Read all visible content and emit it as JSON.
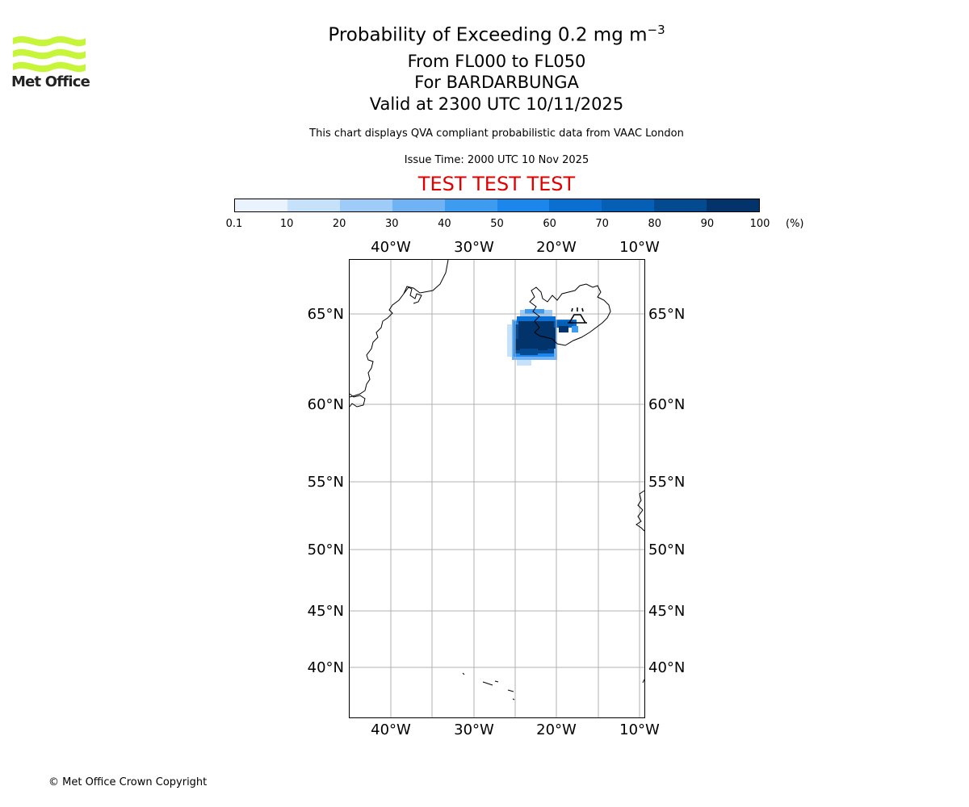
{
  "header": {
    "title_main": "Probability of Exceeding 0.2 mg m",
    "title_sup": "−3",
    "flight_levels": "From FL000 to FL050",
    "volcano": "For BARDARBUNGA",
    "valid": "Valid at 2300 UTC 10/11/2025",
    "description": "This chart displays QVA compliant probabilistic data from VAAC London",
    "issue_time": "Issue Time: 2000 UTC 10 Nov 2025",
    "test_banner": "TEST TEST TEST"
  },
  "logo": {
    "text": "Met Office",
    "color": "#c6f53a"
  },
  "colorbar": {
    "labels": [
      "0.1",
      "10",
      "20",
      "30",
      "40",
      "50",
      "60",
      "70",
      "80",
      "90",
      "100"
    ],
    "unit": "(%)",
    "colors": [
      "#eaf3fd",
      "#c6e2fb",
      "#9ecbf7",
      "#6fb3f4",
      "#3d9bf0",
      "#1c86ea",
      "#0a6fd0",
      "#045fb5",
      "#034a90",
      "#02336a"
    ]
  },
  "map": {
    "lon_labels": [
      "40°W",
      "30°W",
      "20°W",
      "10°W"
    ],
    "lat_labels": [
      "65°N",
      "60°N",
      "55°N",
      "50°N",
      "45°N",
      "40°N"
    ],
    "volcano_marker": "volcano-icon",
    "gridline_color": "#b0b0b0"
  },
  "footer": {
    "copyright": "© Met Office Crown Copyright"
  }
}
